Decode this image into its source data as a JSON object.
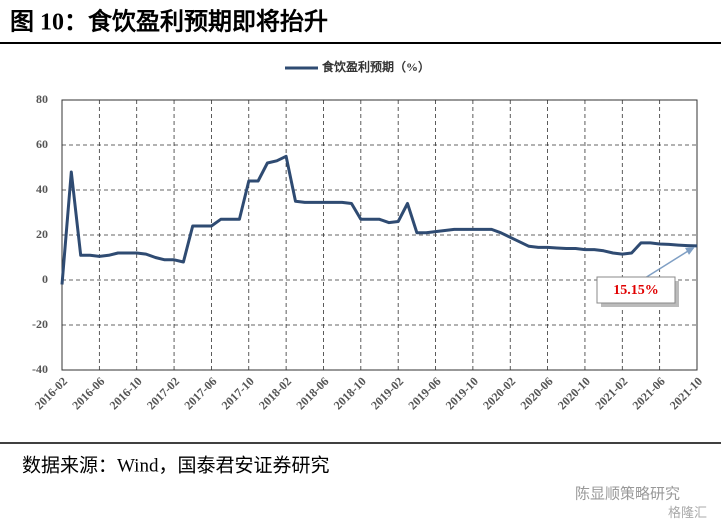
{
  "chart_data": {
    "type": "line",
    "title": "图 10：食饮盈利预期即将抬升",
    "source": "数据来源：Wind，国泰君安证券研究",
    "categories": [
      "2016-02",
      null,
      null,
      null,
      "2016-06",
      null,
      null,
      null,
      "2016-10",
      null,
      null,
      null,
      "2017-02",
      null,
      null,
      null,
      "2017-06",
      null,
      null,
      null,
      "2017-10",
      null,
      null,
      null,
      "2018-02",
      null,
      null,
      null,
      "2018-06",
      null,
      null,
      null,
      "2018-10",
      null,
      null,
      null,
      "2019-02",
      null,
      null,
      null,
      "2019-06",
      null,
      null,
      null,
      "2019-10",
      null,
      null,
      null,
      "2020-02",
      null,
      null,
      null,
      "2020-06",
      null,
      null,
      null,
      "2020-10",
      null,
      null,
      null,
      "2021-02",
      null,
      null,
      null,
      "2021-06",
      null,
      null,
      null,
      "2021-10"
    ],
    "series": [
      {
        "name": "食饮盈利预期（%）",
        "color": "#2f4b72",
        "values": [
          -2,
          48,
          11,
          11,
          10.5,
          11,
          12,
          12,
          12,
          11.5,
          10,
          9,
          9,
          8,
          24,
          24,
          24,
          27,
          27,
          27,
          44,
          44,
          52,
          53,
          55,
          35,
          34.5,
          34.5,
          34.5,
          34.5,
          34.5,
          34,
          27,
          27,
          27,
          25.5,
          26,
          34,
          21,
          21,
          21.5,
          22,
          22.5,
          22.5,
          22.5,
          22.5,
          22.5,
          21,
          19,
          17,
          15,
          14.5,
          14.5,
          14.2,
          14,
          14,
          13.5,
          13.5,
          13,
          12,
          11.5,
          12,
          16.5,
          16.5,
          16,
          15.8,
          15.5,
          15.3,
          15.15
        ]
      }
    ],
    "annotation": "15.15%",
    "ylim": [
      -40,
      80
    ],
    "yticks": [
      80,
      60,
      40,
      20,
      0,
      -20,
      -40
    ],
    "grid": true,
    "legend": "top"
  },
  "watermark": [
    "陈显顺策略研究",
    "格隆汇"
  ]
}
